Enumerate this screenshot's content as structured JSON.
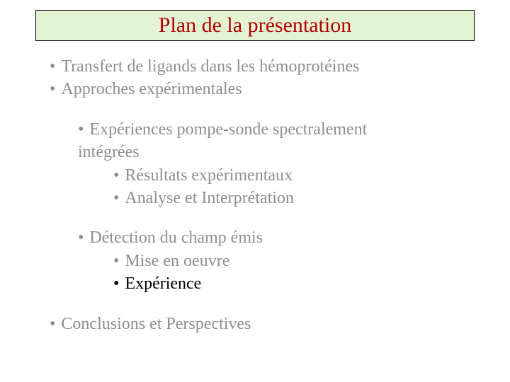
{
  "title": {
    "text": "Plan de la présentation",
    "color": "#b00000",
    "background": "#e4f2d4",
    "border_color": "#000000"
  },
  "text_default_color": "#000000",
  "text_muted_color": "#8e8e8e",
  "bullets": {
    "lvl1_a": "Transfert de ligands dans les hémoprotéines",
    "lvl1_b": "Approches expérimentales",
    "lvl2_a_line1": "Expériences pompe-sonde spectralement",
    "lvl2_a_line2": "intégrées",
    "lvl3_a": "Résultats expérimentaux",
    "lvl3_b": "Analyse et Interprétation",
    "lvl2_b": "Détection du champ émis",
    "lvl3_c": "Mise en oeuvre",
    "lvl3_d": "Expérience",
    "lvl1_c": "Conclusions  et Perspectives"
  },
  "bullet_char": "•"
}
